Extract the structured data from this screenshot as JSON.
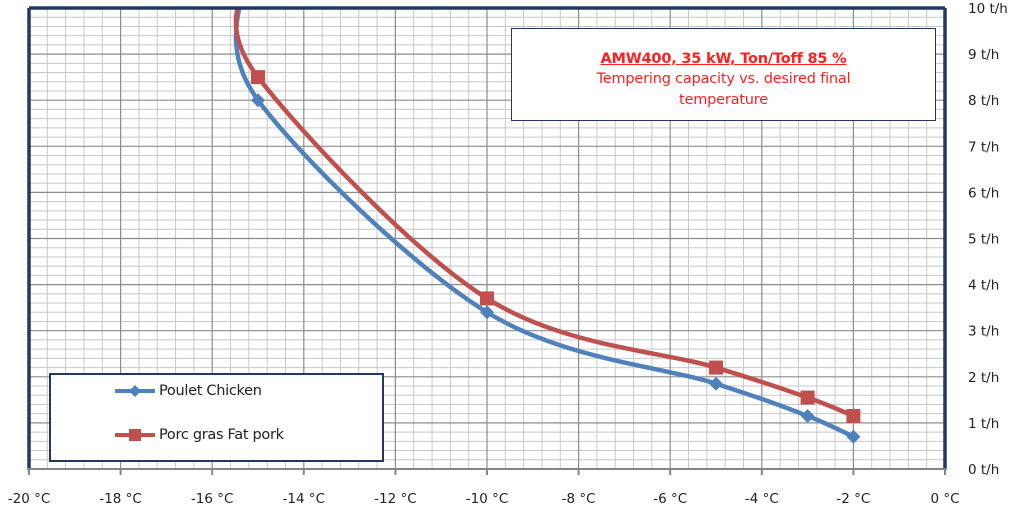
{
  "chart_data": {
    "type": "line",
    "title": "AMW400,  35 kW,  Ton/Toff 85 %",
    "subtitle": "Tempering capacity vs. desired final temperature",
    "xlabel": "",
    "ylabel": "",
    "xlim": [
      -20,
      0
    ],
    "ylim": [
      0,
      10
    ],
    "x_ticks": [
      "-20 °C",
      "-18 °C",
      "-16 °C",
      "-14 °C",
      "-12 °C",
      "-10 °C",
      "-8 °C",
      "-6 °C",
      "-4 °C",
      "-2 °C",
      "0 °C"
    ],
    "y_ticks": [
      "0 t/h",
      "1 t/h",
      "2 t/h",
      "3 t/h",
      "4 t/h",
      "5 t/h",
      "6 t/h",
      "7 t/h",
      "8 t/h",
      "9 t/h",
      "10 t/h"
    ],
    "y_axis_position": "right",
    "grid": true,
    "legend_position": "bottom-left",
    "series": [
      {
        "name": "Poulet Chicken",
        "color": "#4f81bd",
        "marker": "diamond",
        "x": [
          -15,
          -10,
          -5,
          -3,
          -2
        ],
        "y": [
          8.0,
          3.4,
          1.85,
          1.15,
          0.7
        ]
      },
      {
        "name": "Porc gras Fat pork",
        "color": "#c0504d",
        "marker": "square",
        "x": [
          -15,
          -10,
          -5,
          -3,
          -2
        ],
        "y": [
          8.5,
          3.7,
          2.2,
          1.55,
          1.15
        ]
      }
    ]
  },
  "colors": {
    "border": "#1f3864",
    "title_text": "#ff1f1f",
    "grid_major": "#8c8c8c",
    "grid_minor": "#c8c8c8"
  }
}
